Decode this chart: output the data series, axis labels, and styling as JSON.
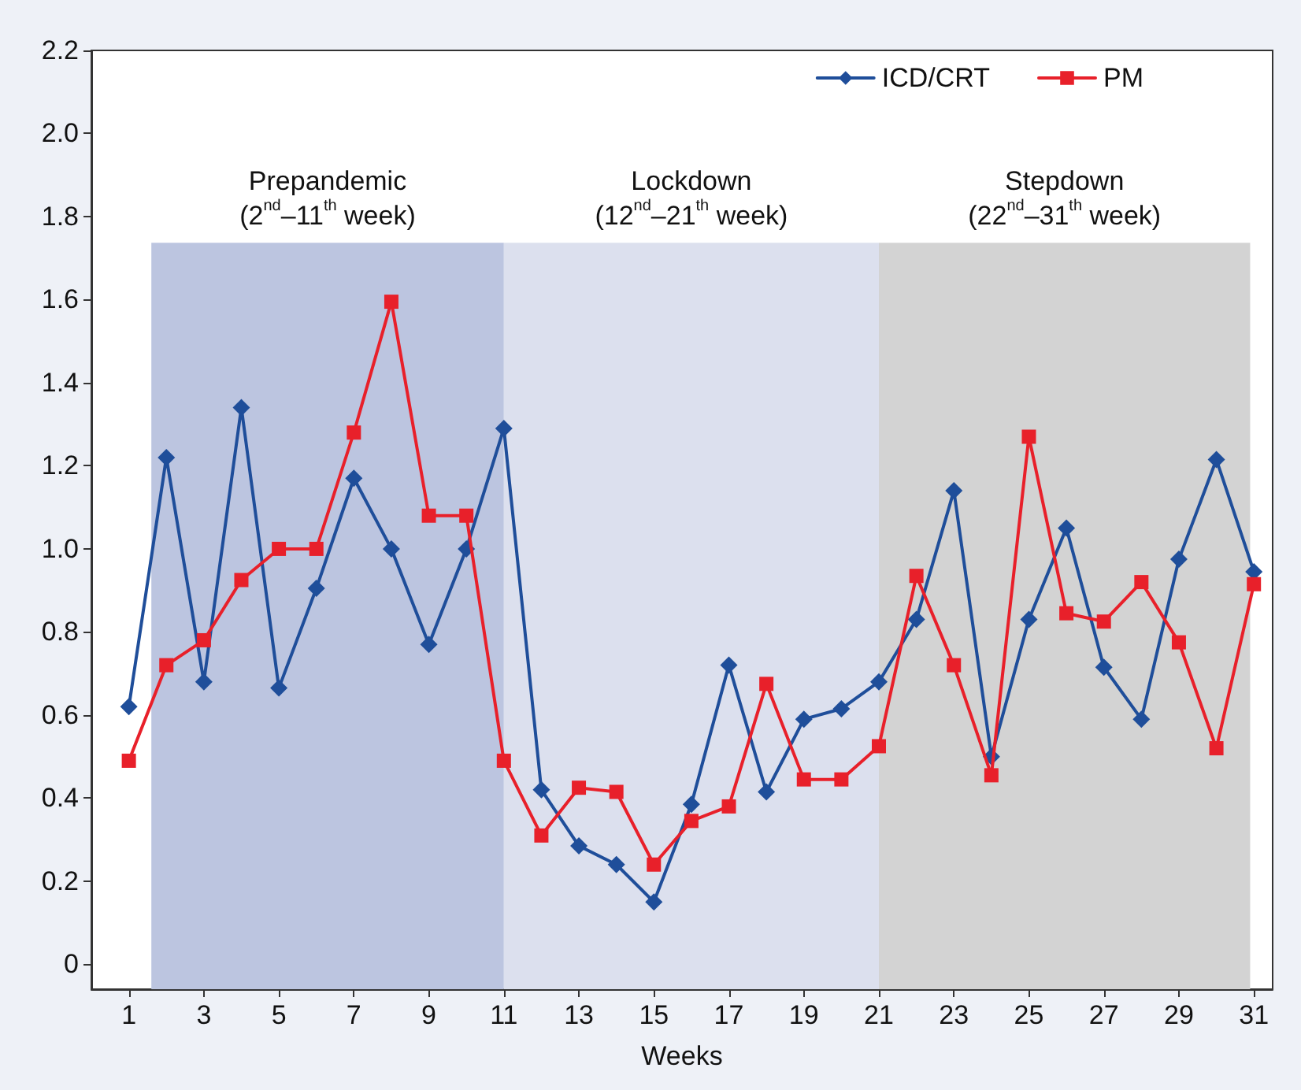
{
  "chart_data": {
    "type": "line",
    "xlabel": "Weeks",
    "x": [
      1,
      2,
      3,
      4,
      5,
      6,
      7,
      8,
      9,
      10,
      11,
      12,
      13,
      14,
      15,
      16,
      17,
      18,
      19,
      20,
      21,
      22,
      23,
      24,
      25,
      26,
      27,
      28,
      29,
      30,
      31
    ],
    "series": [
      {
        "name": "ICD/CRT",
        "color": "#1f4e9a",
        "marker": "diamond",
        "values": [
          0.62,
          1.22,
          0.68,
          1.34,
          0.665,
          0.905,
          1.17,
          1.0,
          0.77,
          1.0,
          1.29,
          0.42,
          0.285,
          0.24,
          0.15,
          0.385,
          0.72,
          0.415,
          0.59,
          0.615,
          0.68,
          0.83,
          1.14,
          0.5,
          0.83,
          1.05,
          0.715,
          0.59,
          0.975,
          1.215,
          0.945
        ]
      },
      {
        "name": "PM",
        "color": "#e8202a",
        "marker": "square",
        "values": [
          0.49,
          0.72,
          0.78,
          0.925,
          1.0,
          1.0,
          1.28,
          1.595,
          1.08,
          1.08,
          0.49,
          0.31,
          0.425,
          0.415,
          0.24,
          0.345,
          0.38,
          0.675,
          0.445,
          0.445,
          0.525,
          0.935,
          0.72,
          0.455,
          1.27,
          0.845,
          0.825,
          0.92,
          0.775,
          0.52,
          0.915
        ]
      }
    ],
    "bands": [
      {
        "axis": "x",
        "from": 1.6,
        "to": 11,
        "label": "Prepandemic\n(2$^{nd}$–11$^{th}$ week)",
        "color": "#bcc5e0"
      },
      {
        "axis": "x",
        "from": 11,
        "to": 21,
        "label": "Lockdown\n(12$^{nd}$–21$^{th}$ week)",
        "color": "#dce0ee"
      },
      {
        "axis": "x",
        "from": 21,
        "to": 30.9,
        "label": "Stepdown\n(22$^{nd}$–31$^{th}$ week)",
        "color": "#d3d3d3"
      }
    ],
    "xlim": [
      0,
      31.5
    ],
    "xticks": [
      1,
      3,
      5,
      7,
      9,
      11,
      13,
      15,
      17,
      19,
      21,
      23,
      25,
      27,
      29,
      31
    ],
    "ylim": [
      -0.06,
      2.2
    ],
    "yticks": [
      0,
      0.2,
      0.4,
      0.6,
      0.8,
      {
        "value": 1,
        "label": "1.0"
      },
      1.2,
      1.4,
      1.6,
      1.8,
      {
        "value": 2,
        "label": "2.0"
      },
      2.2
    ],
    "grid": false,
    "legend": "top right",
    "line_style": "solid"
  }
}
